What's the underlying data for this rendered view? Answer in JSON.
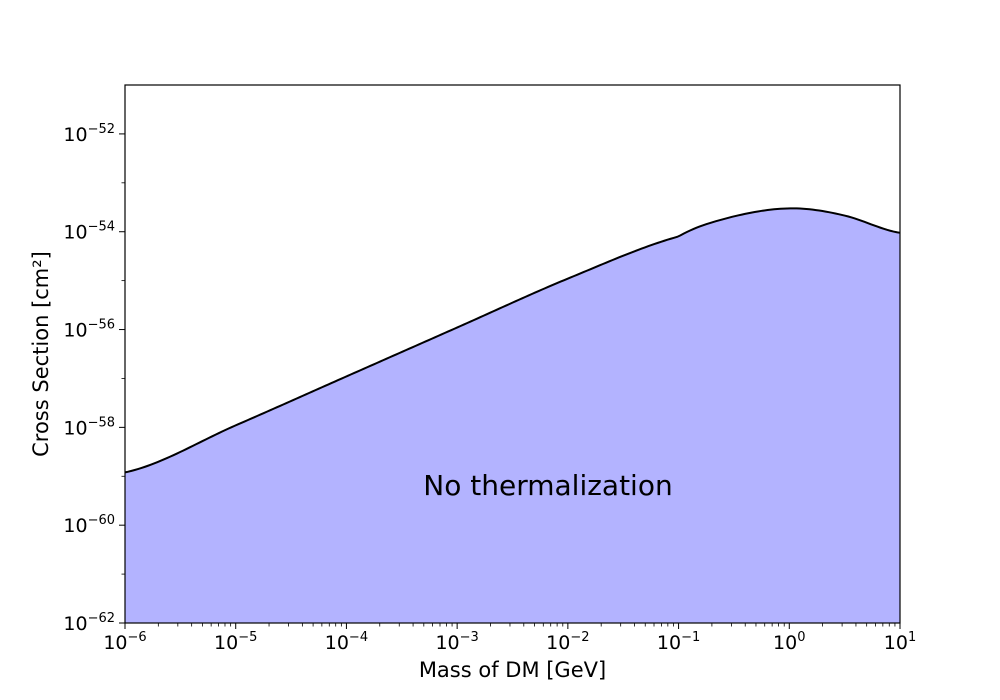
{
  "chart_data": {
    "type": "area",
    "xlabel": "Mass of DM [GeV]",
    "ylabel": "Cross Section [cm²]",
    "x_scale": "log",
    "y_scale": "log",
    "xlim": [
      1e-06,
      10
    ],
    "ylim": [
      1e-62,
      1e-51
    ],
    "x_tick_exponents": [
      "−6",
      "−5",
      "−4",
      "−3",
      "−2",
      "−1",
      "0",
      "1"
    ],
    "y_tick_exponents": [
      "−52",
      "−54",
      "−56",
      "−58",
      "−60",
      "−62"
    ],
    "tick_base": "10",
    "grid": false,
    "series": [
      {
        "x": [
          1e-06,
          1e-05,
          0.0001,
          0.001,
          0.01,
          0.1,
          0.3,
          1,
          3,
          10
        ],
        "y": [
          1.2e-59,
          1.1e-58,
          1.1e-57,
          1.1e-56,
          1.1e-55,
          8e-55,
          2e-54,
          3e-54,
          2.2e-54,
          9.5e-55
        ]
      }
    ],
    "fill_color": "#b3b3ff",
    "line_color": "#000000",
    "annotation": "No thermalization"
  }
}
